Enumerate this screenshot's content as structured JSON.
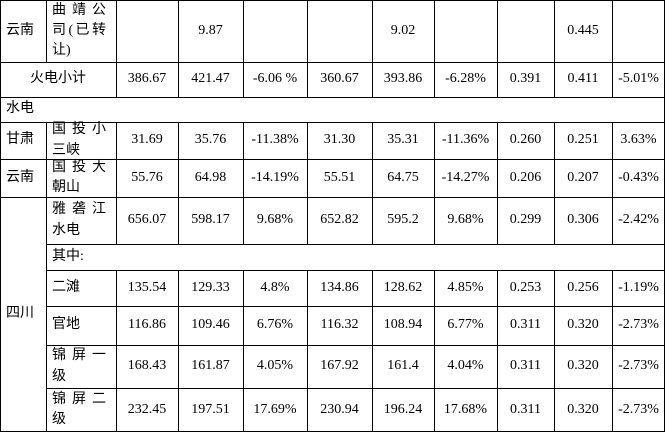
{
  "rows": [
    {
      "prov": "云南",
      "name_lines": [
        "曲靖公",
        "司(已转",
        "让)"
      ],
      "v": [
        "",
        "9.87",
        "",
        "",
        "9.02",
        "",
        "",
        "0.445",
        ""
      ]
    },
    {
      "subtotal_label": "火电小计",
      "v": [
        "386.67",
        "421.47",
        "-6.06 %",
        "360.67",
        "393.86",
        "-6.28%",
        "0.391",
        "0.411",
        "-5.01%"
      ]
    },
    {
      "section_label": "水电"
    },
    {
      "prov": "甘肃",
      "name_lines": [
        "国投小",
        "三峡"
      ],
      "v": [
        "31.69",
        "35.76",
        "-11.38%",
        "31.30",
        "35.31",
        "-11.36%",
        "0.260",
        "0.251",
        "3.63%"
      ]
    },
    {
      "prov": "云南",
      "name_lines": [
        "国投大",
        "朝山"
      ],
      "v": [
        "55.76",
        "64.98",
        "-14.19%",
        "55.51",
        "64.75",
        "-14.27%",
        "0.206",
        "0.207",
        "-0.43%"
      ]
    },
    {
      "name_lines": [
        "雅砻江",
        "水电"
      ],
      "v": [
        "656.07",
        "598.17",
        "9.68%",
        "652.82",
        "595.2",
        "9.68%",
        "0.299",
        "0.306",
        "-2.42%"
      ]
    },
    {
      "name_lines": [
        "其中:"
      ]
    },
    {
      "name_lines": [
        "二滩"
      ],
      "v": [
        "135.54",
        "129.33",
        "4.8%",
        "134.86",
        "128.62",
        "4.85%",
        "0.253",
        "0.256",
        "-1.19%"
      ]
    },
    {
      "name_lines": [
        "官地"
      ],
      "v": [
        "116.86",
        "109.46",
        "6.76%",
        "116.32",
        "108.94",
        "6.77%",
        "0.311",
        "0.320",
        "-2.73%"
      ]
    },
    {
      "name_lines": [
        "锦屏一",
        "级"
      ],
      "v": [
        "168.43",
        "161.87",
        "4.05%",
        "167.92",
        "161.4",
        "4.04%",
        "0.311",
        "0.320",
        "-2.73%"
      ]
    },
    {
      "name_lines": [
        "锦屏二",
        "级"
      ],
      "v": [
        "232.45",
        "197.51",
        "17.69%",
        "230.94",
        "196.24",
        "17.68%",
        "0.311",
        "0.320",
        "-2.73%"
      ]
    }
  ],
  "merged_prov": "四川"
}
